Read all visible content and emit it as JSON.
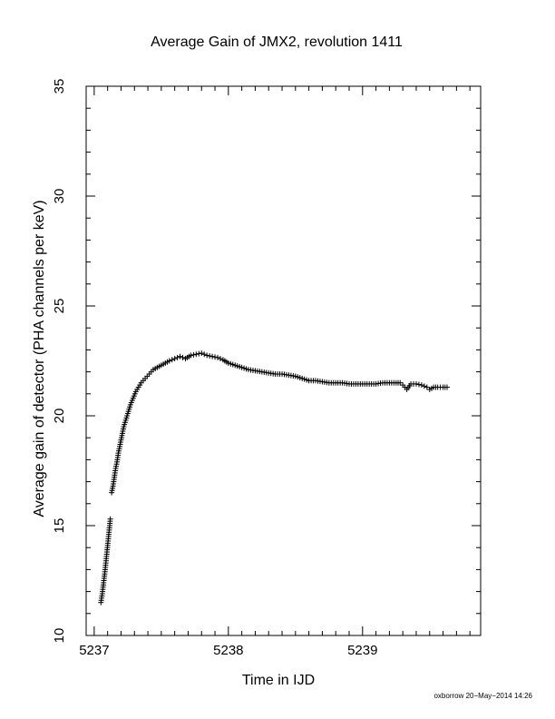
{
  "chart_data": {
    "type": "scatter",
    "title": "Average Gain of JMX2, revolution 1411",
    "xlabel": "Time in IJD",
    "ylabel": "Average gain of detector (PHA channels per keV)",
    "xlim": [
      5236.94,
      5239.88
    ],
    "ylim": [
      10,
      35
    ],
    "xticks": [
      5237,
      5238,
      5239
    ],
    "xtick_labels": [
      "5237",
      "5238",
      "5239"
    ],
    "yticks": [
      10,
      15,
      20,
      25,
      30,
      35
    ],
    "ytick_labels": [
      "10",
      "15",
      "20",
      "25",
      "30",
      "35"
    ],
    "grid": false,
    "marker": "plus",
    "series": [
      {
        "x": [
          5237.05,
          5237.06,
          5237.07,
          5237.08,
          5237.09,
          5237.1,
          5237.11,
          5237.12,
          5237.13,
          5237.14,
          5237.15,
          5237.16,
          5237.17,
          5237.18,
          5237.19,
          5237.2,
          5237.21,
          5237.22,
          5237.23,
          5237.24,
          5237.25,
          5237.27,
          5237.29,
          5237.31,
          5237.33,
          5237.35,
          5237.38,
          5237.41,
          5237.44,
          5237.47,
          5237.5,
          5237.53,
          5237.56,
          5237.6,
          5237.64,
          5237.68,
          5237.72,
          5237.76,
          5237.8,
          5237.84,
          5237.88,
          5237.92,
          5237.96,
          5238.0,
          5238.05,
          5238.1,
          5238.15,
          5238.2,
          5238.25,
          5238.3,
          5238.35,
          5238.4,
          5238.45,
          5238.5,
          5238.55,
          5238.6,
          5238.65,
          5238.7,
          5238.75,
          5238.8,
          5238.85,
          5238.9,
          5238.95,
          5239.0,
          5239.05,
          5239.1,
          5239.15,
          5239.2,
          5239.25,
          5239.28,
          5239.3,
          5239.33,
          5239.36,
          5239.4,
          5239.44,
          5239.48,
          5239.5,
          5239.53,
          5239.56,
          5239.6,
          5239.63
        ],
        "y": [
          11.5,
          11.9,
          12.4,
          12.9,
          13.5,
          14.1,
          14.7,
          15.3,
          16.5,
          16.8,
          17.2,
          17.6,
          17.9,
          18.3,
          18.6,
          18.9,
          19.2,
          19.5,
          19.7,
          19.9,
          20.1,
          20.5,
          20.8,
          21.1,
          21.3,
          21.5,
          21.7,
          21.9,
          22.1,
          22.2,
          22.3,
          22.4,
          22.5,
          22.6,
          22.7,
          22.6,
          22.75,
          22.8,
          22.85,
          22.75,
          22.7,
          22.65,
          22.55,
          22.4,
          22.3,
          22.2,
          22.1,
          22.05,
          22.0,
          21.95,
          21.9,
          21.9,
          21.85,
          21.8,
          21.7,
          21.6,
          21.6,
          21.55,
          21.5,
          21.5,
          21.5,
          21.45,
          21.45,
          21.45,
          21.45,
          21.45,
          21.5,
          21.5,
          21.5,
          21.5,
          21.4,
          21.2,
          21.45,
          21.45,
          21.4,
          21.3,
          21.2,
          21.3,
          21.3,
          21.3,
          21.3
        ]
      }
    ]
  },
  "footer": {
    "stamp": "oxborrow 20−May−2014 14:26"
  }
}
